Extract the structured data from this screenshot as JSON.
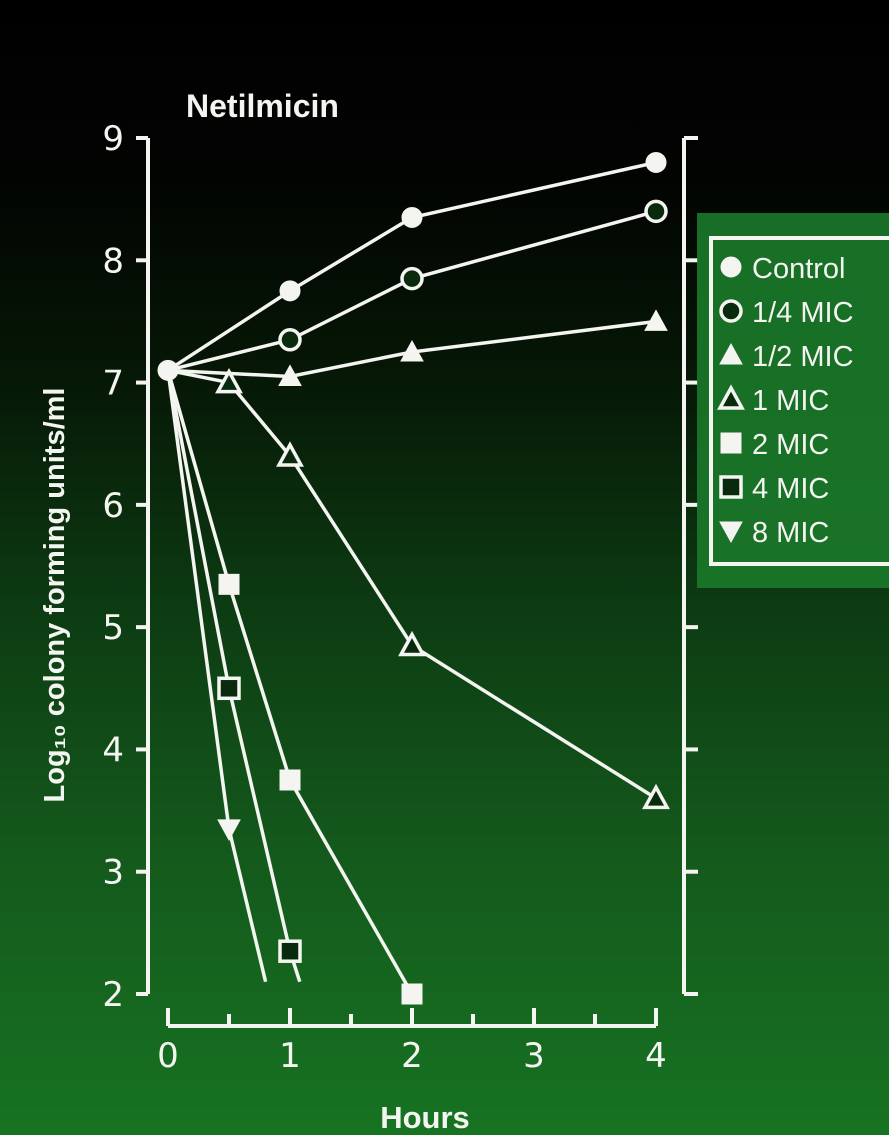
{
  "colors": {
    "background_top": "#000000",
    "background_bottom": "#177322",
    "ink": "#f4f4f0",
    "legend_bg": "#1b7a2a"
  },
  "chart_data": {
    "type": "line",
    "title": "Netilmicin",
    "xlabel": "Hours",
    "ylabel": "Log₁₀ colony forming units/ml",
    "x_ticks": [
      "0",
      "1",
      "2",
      "3",
      "4"
    ],
    "y_ticks": [
      "2",
      "3",
      "4",
      "5",
      "6",
      "7",
      "8",
      "9"
    ],
    "xlim": [
      0,
      4
    ],
    "ylim": [
      2,
      9
    ],
    "grid": false,
    "legend_position": "right",
    "series": [
      {
        "name": "Control",
        "marker": "filled-circle",
        "x": [
          0,
          1,
          2,
          4
        ],
        "y": [
          7.1,
          7.75,
          8.35,
          8.8
        ]
      },
      {
        "name": "1/4 MIC",
        "marker": "open-circle",
        "x": [
          0,
          1,
          2,
          4
        ],
        "y": [
          7.1,
          7.35,
          7.85,
          8.4
        ]
      },
      {
        "name": "1/2 MIC",
        "marker": "filled-triangle",
        "x": [
          0,
          1,
          2,
          4
        ],
        "y": [
          7.1,
          7.05,
          7.25,
          7.5
        ]
      },
      {
        "name": "1 MIC",
        "marker": "open-triangle",
        "x": [
          0,
          0.5,
          1,
          2,
          4
        ],
        "y": [
          7.1,
          7.0,
          6.4,
          4.85,
          3.6
        ]
      },
      {
        "name": "2 MIC",
        "marker": "filled-square",
        "x": [
          0,
          0.5,
          1,
          2
        ],
        "y": [
          7.1,
          5.35,
          3.75,
          2.0
        ]
      },
      {
        "name": "4 MIC",
        "marker": "open-square",
        "x": [
          0,
          0.5,
          1
        ],
        "y": [
          7.1,
          4.5,
          2.35
        ]
      },
      {
        "name": "8 MIC",
        "marker": "filled-down-triangle",
        "x": [
          0,
          0.5
        ],
        "y": [
          7.1,
          3.35
        ]
      }
    ]
  },
  "legend": {
    "items": [
      "Control",
      "1/4 MIC",
      "1/2 MIC",
      "1 MIC",
      "2 MIC",
      "4 MIC",
      "8 MIC"
    ]
  }
}
